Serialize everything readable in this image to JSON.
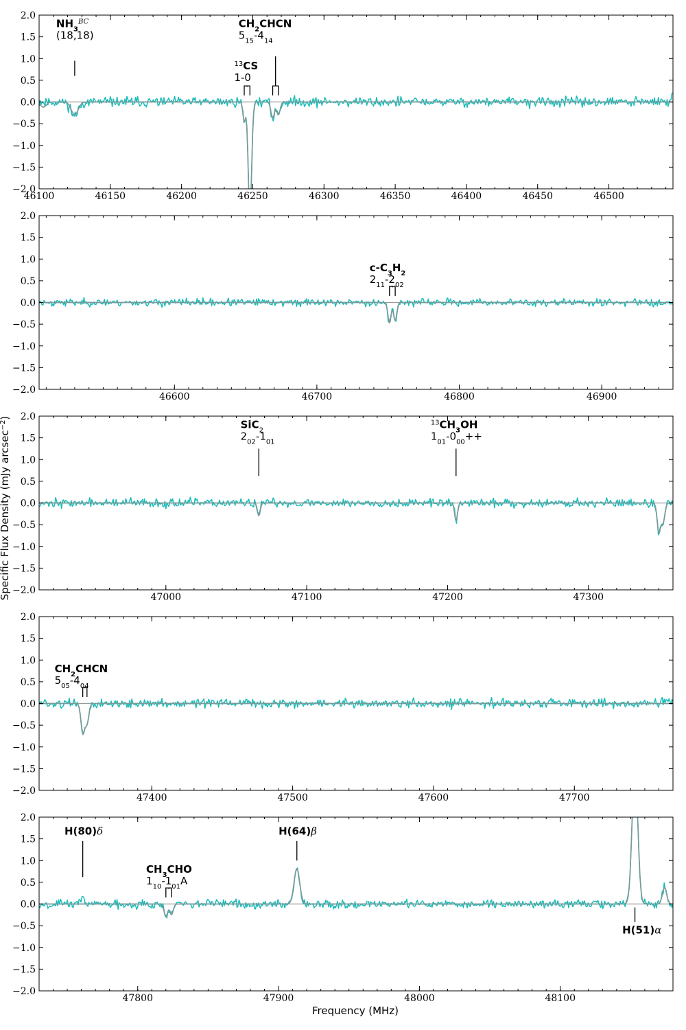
{
  "figure": {
    "ylabel": "Specific Flux Density (mJy arcsec",
    "ylabel_sup": "−2",
    "ylabel_close": ")",
    "xlabel": "Frequency (MHz)"
  },
  "colors": {
    "observed": "#1abcb8",
    "model": "#7a9a9a",
    "baseline": "#999999",
    "axes": "#000000"
  },
  "chart_data": [
    {
      "type": "line",
      "xlim": [
        46100,
        46545
      ],
      "ylim": [
        -2.0,
        2.0
      ],
      "yticks": [
        "2.0",
        "1.5",
        "1.0",
        "0.5",
        "0.0",
        "−0.5",
        "−1.0",
        "−1.5",
        "−2.0"
      ],
      "xticks": [
        {
          "value": 46100,
          "label": "46100"
        },
        {
          "value": 46150,
          "label": "46150"
        },
        {
          "value": 46200,
          "label": "46200"
        },
        {
          "value": 46250,
          "label": "46250"
        },
        {
          "value": 46300,
          "label": "46300"
        },
        {
          "value": 46350,
          "label": "46350"
        },
        {
          "value": 46400,
          "label": "46400"
        },
        {
          "value": 46450,
          "label": "46450"
        },
        {
          "value": 46500,
          "label": "46500"
        }
      ],
      "series": [
        {
          "role": "observed",
          "noise": 0.08,
          "seed": 11,
          "features": [
            {
              "x": 46125,
              "amp": -0.32,
              "w": 2.6
            },
            {
              "x": 46244,
              "amp": -0.45,
              "w": 0.9
            },
            {
              "x": 46248,
              "amp": -2.6,
              "w": 1.2
            },
            {
              "x": 46264,
              "amp": -0.38,
              "w": 1.2
            },
            {
              "x": 46268,
              "amp": -0.3,
              "w": 1.2
            },
            {
              "x": 46545,
              "amp": 0.2,
              "w": 1.0
            }
          ]
        },
        {
          "role": "model",
          "features": [
            {
              "x": 46103,
              "amp": -0.12,
              "w": 2.0
            },
            {
              "x": 46125,
              "amp": -0.3,
              "w": 2.4
            },
            {
              "x": 46244,
              "amp": -0.45,
              "w": 0.9
            },
            {
              "x": 46248,
              "amp": -2.6,
              "w": 1.2
            },
            {
              "x": 46264,
              "amp": -0.38,
              "w": 1.2
            },
            {
              "x": 46268,
              "amp": -0.3,
              "w": 1.2
            }
          ]
        }
      ],
      "annotations": [
        {
          "lines": [
            [
              {
                "t": "NH",
                "b": 1
              },
              {
                "t": "3",
                "sub": 1,
                "b": 1
              },
              {
                "t": "BC",
                "sup": 1,
                "i": 1
              }
            ],
            [
              {
                "t": "(18,18)"
              }
            ]
          ],
          "x": 46112,
          "y": 1.72,
          "marker": {
            "type": "line",
            "x": 46125,
            "y_top": 0.95,
            "y_bot": 0.6
          }
        },
        {
          "lines": [
            [
              {
                "t": "13",
                "sup": 1
              },
              {
                "t": "CS",
                "b": 1
              }
            ],
            [
              {
                "t": "1-0"
              }
            ]
          ],
          "x": 46237,
          "y": 0.75,
          "marker": {
            "type": "bracket",
            "x1": 46244,
            "x2": 46248,
            "y_top": 0.35,
            "y_bot": 0.15
          }
        },
        {
          "lines": [
            [
              {
                "t": "CH",
                "b": 1
              },
              {
                "t": "2",
                "sub": 1,
                "b": 1
              },
              {
                "t": "CHCN",
                "b": 1
              }
            ],
            [
              {
                "t": "5"
              },
              {
                "t": "15",
                "sub": 1
              },
              {
                "t": "-4"
              },
              {
                "t": "14",
                "sub": 1
              }
            ]
          ],
          "x": 46240,
          "y": 1.72,
          "marker": {
            "type": "bracket",
            "x1": 46264,
            "x2": 46268,
            "y_top": 1.05,
            "y_bot": 0.15,
            "stem_top": 1.05
          }
        }
      ]
    },
    {
      "type": "line",
      "xlim": [
        46505,
        46950
      ],
      "ylim": [
        -2.0,
        2.0
      ],
      "yticks": [
        "2.0",
        "1.5",
        "1.0",
        "0.5",
        "0.0",
        "−0.5",
        "−1.0",
        "−1.5",
        "−2.0"
      ],
      "xticks": [
        {
          "value": 46600,
          "label": "46600"
        },
        {
          "value": 46700,
          "label": "46700"
        },
        {
          "value": 46800,
          "label": "46800"
        },
        {
          "value": 46900,
          "label": "46900"
        }
      ],
      "series": [
        {
          "role": "observed",
          "noise": 0.06,
          "seed": 23,
          "features": [
            {
              "x": 46751,
              "amp": -0.48,
              "w": 1.1
            },
            {
              "x": 46755,
              "amp": -0.42,
              "w": 1.1
            }
          ]
        },
        {
          "role": "model",
          "features": [
            {
              "x": 46751,
              "amp": -0.48,
              "w": 1.1
            },
            {
              "x": 46755,
              "amp": -0.42,
              "w": 1.1
            }
          ]
        }
      ],
      "annotations": [
        {
          "lines": [
            [
              {
                "t": "c-C",
                "b": 1
              },
              {
                "t": "3",
                "sub": 1,
                "b": 1
              },
              {
                "t": "H",
                "b": 1
              },
              {
                "t": "2",
                "sub": 1,
                "b": 1
              }
            ],
            [
              {
                "t": "2"
              },
              {
                "t": "11",
                "sub": 1
              },
              {
                "t": "-2"
              },
              {
                "t": "02",
                "sub": 1
              }
            ]
          ],
          "x": 46737,
          "y": 0.72,
          "marker": {
            "type": "bracket",
            "x1": 46751,
            "x2": 46755,
            "y_top": 0.35,
            "y_bot": 0.15
          }
        }
      ]
    },
    {
      "type": "line",
      "xlim": [
        46910,
        47360
      ],
      "ylim": [
        -2.0,
        2.0
      ],
      "yticks": [
        "2.0",
        "1.5",
        "1.0",
        "0.5",
        "0.0",
        "−0.5",
        "−1.0",
        "−1.5",
        "−2.0"
      ],
      "xticks": [
        {
          "value": 47000,
          "label": "47000"
        },
        {
          "value": 47100,
          "label": "47100"
        },
        {
          "value": 47200,
          "label": "47200"
        },
        {
          "value": 47300,
          "label": "47300"
        }
      ],
      "series": [
        {
          "role": "observed",
          "noise": 0.07,
          "seed": 37,
          "features": [
            {
              "x": 47066,
              "amp": -0.3,
              "w": 1.0
            },
            {
              "x": 47206,
              "amp": -0.42,
              "w": 1.0
            },
            {
              "x": 47350,
              "amp": -0.68,
              "w": 1.2
            },
            {
              "x": 47353,
              "amp": -0.45,
              "w": 1.2
            }
          ]
        },
        {
          "role": "model",
          "features": [
            {
              "x": 47066,
              "amp": -0.3,
              "w": 1.0
            },
            {
              "x": 47206,
              "amp": -0.42,
              "w": 1.0
            },
            {
              "x": 47350,
              "amp": -0.68,
              "w": 1.2
            },
            {
              "x": 47353,
              "amp": -0.45,
              "w": 1.2
            }
          ]
        }
      ],
      "annotations": [
        {
          "lines": [
            [
              {
                "t": "SiC",
                "b": 1
              },
              {
                "t": "2",
                "sub": 1
              }
            ],
            [
              {
                "t": "2"
              },
              {
                "t": "02",
                "sub": 1
              },
              {
                "t": "-1"
              },
              {
                "t": "01",
                "sub": 1
              }
            ]
          ],
          "x": 47053,
          "y": 1.72,
          "marker": {
            "type": "line",
            "x": 47066,
            "y_top": 1.25,
            "y_bot": 0.62
          }
        },
        {
          "lines": [
            [
              {
                "t": "13",
                "sup": 1
              },
              {
                "t": "CH",
                "b": 1
              },
              {
                "t": "3",
                "sub": 1,
                "b": 1
              },
              {
                "t": "OH",
                "b": 1
              }
            ],
            [
              {
                "t": "1"
              },
              {
                "t": "01",
                "sub": 1
              },
              {
                "t": "-0"
              },
              {
                "t": "00",
                "sub": 1
              },
              {
                "t": "++"
              }
            ]
          ],
          "x": 47188,
          "y": 1.72,
          "marker": {
            "type": "line",
            "x": 47206,
            "y_top": 1.25,
            "y_bot": 0.62
          }
        }
      ]
    },
    {
      "type": "line",
      "xlim": [
        47320,
        47770
      ],
      "ylim": [
        -2.0,
        2.0
      ],
      "yticks": [
        "2.0",
        "1.5",
        "1.0",
        "0.5",
        "0.0",
        "−0.5",
        "−1.0",
        "−1.5",
        "−2.0"
      ],
      "xticks": [
        {
          "value": 47400,
          "label": "47400"
        },
        {
          "value": 47500,
          "label": "47500"
        },
        {
          "value": 47600,
          "label": "47600"
        },
        {
          "value": 47700,
          "label": "47700"
        }
      ],
      "series": [
        {
          "role": "observed",
          "noise": 0.07,
          "seed": 51,
          "features": [
            {
              "x": 47351,
              "amp": -0.68,
              "w": 1.3
            },
            {
              "x": 47354,
              "amp": -0.45,
              "w": 1.3
            },
            {
              "x": 47765,
              "amp": 0.08,
              "w": 3.0
            }
          ]
        },
        {
          "role": "model",
          "features": [
            {
              "x": 47351,
              "amp": -0.68,
              "w": 1.3
            },
            {
              "x": 47354,
              "amp": -0.45,
              "w": 1.3
            }
          ]
        }
      ],
      "annotations": [
        {
          "lines": [
            [
              {
                "t": "CH",
                "b": 1
              },
              {
                "t": "2",
                "sub": 1,
                "b": 1
              },
              {
                "t": "CHCN",
                "b": 1
              }
            ],
            [
              {
                "t": "5"
              },
              {
                "t": "05",
                "sub": 1
              },
              {
                "t": "-4"
              },
              {
                "t": "04",
                "sub": 1
              }
            ]
          ],
          "x": 47331,
          "y": 0.72,
          "marker": {
            "type": "bracket",
            "x1": 47351,
            "x2": 47354,
            "y_top": 0.35,
            "y_bot": 0.15
          }
        }
      ]
    },
    {
      "type": "line",
      "xlim": [
        47730,
        48180
      ],
      "ylim": [
        -2.0,
        2.0
      ],
      "yticks": [
        "2.0",
        "1.5",
        "1.0",
        "0.5",
        "0.0",
        "−0.5",
        "−1.0",
        "−1.5",
        "−2.0"
      ],
      "xticks": [
        {
          "value": 47800,
          "label": "47800"
        },
        {
          "value": 47900,
          "label": "47900"
        },
        {
          "value": 48000,
          "label": "48000"
        },
        {
          "value": 48100,
          "label": "48100"
        }
      ],
      "series": [
        {
          "role": "observed",
          "noise": 0.07,
          "seed": 67,
          "features": [
            {
              "x": 47761,
              "amp": 0.18,
              "w": 1.2
            },
            {
              "x": 47820,
              "amp": -0.3,
              "w": 1.2
            },
            {
              "x": 47824,
              "amp": -0.25,
              "w": 1.2
            },
            {
              "x": 47913,
              "amp": 0.82,
              "w": 2.0
            },
            {
              "x": 48153,
              "amp": 3.2,
              "w": 2.0
            },
            {
              "x": 48174,
              "amp": 0.4,
              "w": 1.5
            }
          ]
        },
        {
          "role": "model",
          "features": [
            {
              "x": 47820,
              "amp": -0.3,
              "w": 1.2
            },
            {
              "x": 47824,
              "amp": -0.25,
              "w": 1.2
            },
            {
              "x": 47913,
              "amp": 0.82,
              "w": 2.0
            },
            {
              "x": 48153,
              "amp": 3.2,
              "w": 2.0
            },
            {
              "x": 48174,
              "amp": 0.38,
              "w": 1.5
            }
          ]
        }
      ],
      "annotations": [
        {
          "lines": [
            [
              {
                "t": "H(80)",
                "b": 1
              },
              {
                "t": "δ",
                "i": 1
              }
            ]
          ],
          "x": 47748,
          "y": 1.6,
          "marker": {
            "type": "line",
            "x": 47761,
            "y_top": 1.45,
            "y_bot": 0.62
          }
        },
        {
          "lines": [
            [
              {
                "t": "CH",
                "b": 1
              },
              {
                "t": "3",
                "sub": 1,
                "b": 1
              },
              {
                "t": "CHO",
                "b": 1
              }
            ],
            [
              {
                "t": "1"
              },
              {
                "t": "10",
                "sub": 1
              },
              {
                "t": "-1"
              },
              {
                "t": "01",
                "sub": 1
              },
              {
                "t": "A"
              }
            ]
          ],
          "x": 47806,
          "y": 0.72,
          "marker": {
            "type": "bracket",
            "x1": 47820,
            "x2": 47824,
            "y_top": 0.35,
            "y_bot": 0.15
          }
        },
        {
          "lines": [
            [
              {
                "t": "H(64)",
                "b": 1
              },
              {
                "t": "β",
                "i": 1
              }
            ]
          ],
          "x": 47900,
          "y": 1.6,
          "marker": {
            "type": "line",
            "x": 47913,
            "y_top": 1.45,
            "y_bot": 1.0
          }
        },
        {
          "lines": [
            [
              {
                "t": "H(51)",
                "b": 1
              },
              {
                "t": "α",
                "i": 1
              }
            ]
          ],
          "x": 48144,
          "y": -0.68,
          "marker": {
            "type": "line",
            "x": 48153,
            "y_top": -0.08,
            "y_bot": -0.42
          }
        }
      ]
    }
  ]
}
